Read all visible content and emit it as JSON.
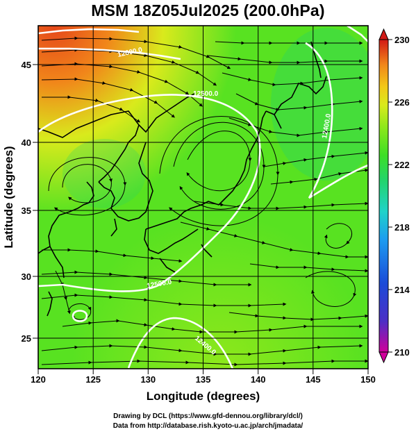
{
  "header": {
    "title": "MSM 18Z05Jul2025 (200.0hPa)"
  },
  "axes": {
    "xlabel": "Longitude (degrees)",
    "ylabel": "Latitude  (degrees)",
    "x_ticks": [
      "120",
      "125",
      "130",
      "135",
      "140",
      "145",
      "150"
    ],
    "y_ticks": [
      "25",
      "30",
      "35",
      "40",
      "45"
    ]
  },
  "colorbar": {
    "ticks": [
      "230",
      "226",
      "222",
      "218",
      "214",
      "210"
    ],
    "colors": [
      "#d0009a",
      "#4b2fc6",
      "#1b4bd8",
      "#1c9cf0",
      "#1fd3c9",
      "#23d46b",
      "#3ddf26",
      "#8ee81b",
      "#d9ea1c",
      "#f3c818",
      "#f1861a",
      "#e5481a",
      "#d21a16"
    ]
  },
  "contours": {
    "labels": [
      "12600.0",
      "12500.0",
      "12400.0",
      "12400.0",
      "12500.0"
    ]
  },
  "credits": {
    "line1": "Drawing by DCL (https://www.gfd-dennou.org/library/dcl/)",
    "line2": "Data from http://database.rish.kyoto-u.ac.jp/arch/jmadata/"
  },
  "chart_data": {
    "type": "heatmap",
    "title": "MSM 18Z05Jul2025 (200.0hPa)",
    "xlabel": "Longitude (degrees)",
    "ylabel": "Latitude  (degrees)",
    "xlim": [
      120,
      150
    ],
    "ylim": [
      22.5,
      47.5
    ],
    "colorbar_range": [
      210,
      230
    ],
    "colorbar_ticks": [
      210,
      214,
      218,
      222,
      226,
      230
    ],
    "grid": true,
    "overlays": [
      "streamlines",
      "height contours",
      "coastlines"
    ]
  }
}
